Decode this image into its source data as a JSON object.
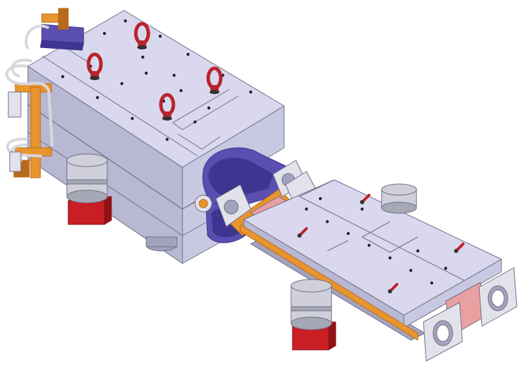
{
  "scene": {
    "subject": "magnet-assembly-cad-render",
    "colors": {
      "background": "#ffffff",
      "steel_top": "#d9d8ee",
      "steel_left": "#b9b8d2",
      "steel_right": "#c9c8e2",
      "steel_dark": "#a4a3be",
      "edge": "#6f6e88",
      "coil": "#5a4fb0",
      "coil_dark": "#3f3590",
      "copper": "#e8952f",
      "copper_dark": "#b86a1c",
      "lifting_eye": "#b8242b",
      "lever": "#c0202a",
      "support_red": "#c81e24",
      "support_red_dark": "#8e1216",
      "cylinder": "#cfd0da",
      "cylinder_dark": "#a7a8b6",
      "flange": "#e2e2ea",
      "pipe": "#d7d7de",
      "pink_block": "#e8a0a0",
      "hole": "#222232"
    }
  }
}
